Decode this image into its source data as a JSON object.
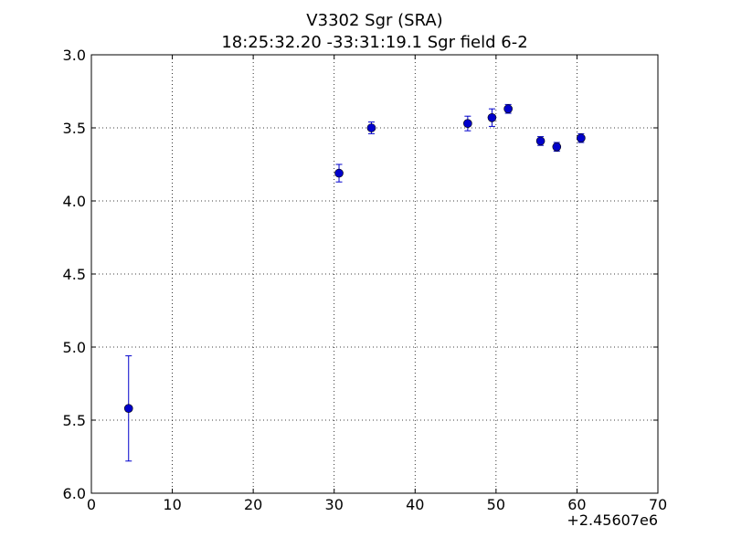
{
  "chart_data": {
    "type": "scatter",
    "title": "V3302 Sgr  (SRA)",
    "subtitle": "18:25:32.20 -33:31:19.1 Sgr field 6-2",
    "xlabel": "",
    "ylabel": "",
    "x_offset_label": "+2.45607e6",
    "xlim": [
      0,
      70
    ],
    "ylim": [
      3.0,
      6.0
    ],
    "y_inverted": true,
    "x_ticks": [
      0,
      10,
      20,
      30,
      40,
      50,
      60,
      70
    ],
    "y_ticks": [
      3.0,
      3.5,
      4.0,
      4.5,
      5.0,
      5.5,
      6.0
    ],
    "grid": true,
    "marker_color": "#0000cc",
    "series": [
      {
        "points": [
          {
            "x": 4.6,
            "y": 5.42,
            "err": 0.36
          },
          {
            "x": 30.6,
            "y": 3.81,
            "err": 0.06
          },
          {
            "x": 34.6,
            "y": 3.5,
            "err": 0.04
          },
          {
            "x": 46.5,
            "y": 3.47,
            "err": 0.05
          },
          {
            "x": 49.5,
            "y": 3.43,
            "err": 0.06
          },
          {
            "x": 51.5,
            "y": 3.37,
            "err": 0.03
          },
          {
            "x": 55.5,
            "y": 3.59,
            "err": 0.03
          },
          {
            "x": 57.5,
            "y": 3.63,
            "err": 0.03
          },
          {
            "x": 60.5,
            "y": 3.57,
            "err": 0.03
          }
        ]
      }
    ]
  }
}
